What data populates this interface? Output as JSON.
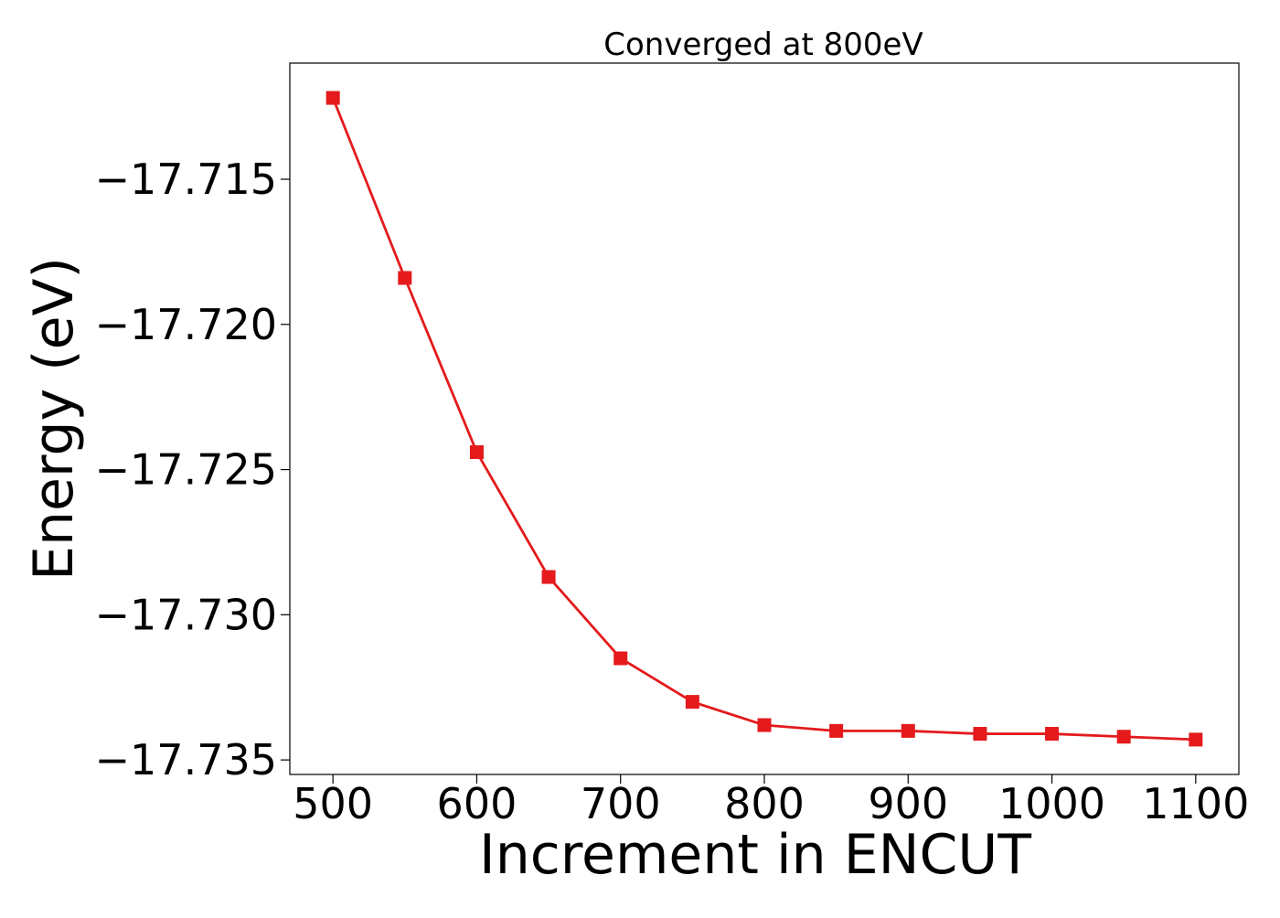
{
  "chart_data": {
    "type": "line",
    "title": "Converged at 800eV",
    "xlabel": "Increment in ENCUT",
    "ylabel": "Energy (eV)",
    "x": [
      500,
      550,
      600,
      650,
      700,
      750,
      800,
      850,
      900,
      950,
      1000,
      1050,
      1100
    ],
    "series": [
      {
        "values": [
          -17.7122,
          -17.7184,
          -17.7244,
          -17.7287,
          -17.7315,
          -17.733,
          -17.7338,
          -17.734,
          -17.734,
          -17.7341,
          -17.7341,
          -17.7342,
          -17.7343
        ],
        "color": "#e41a1c",
        "marker": "square"
      }
    ],
    "xticks": [
      500,
      600,
      700,
      800,
      900,
      1000,
      1100
    ],
    "xtick_labels": [
      "500",
      "600",
      "700",
      "800",
      "900",
      "1000",
      "1100"
    ],
    "yticks": [
      -17.715,
      -17.72,
      -17.725,
      -17.73,
      -17.735
    ],
    "ytick_labels": [
      "−17.715",
      "−17.720",
      "−17.725",
      "−17.730",
      "−17.735"
    ],
    "xlim": [
      470,
      1130
    ],
    "ylim": [
      -17.7355,
      -17.711
    ],
    "grid": false,
    "legend": "none"
  }
}
